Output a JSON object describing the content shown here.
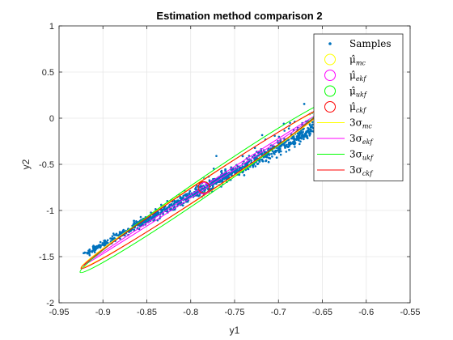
{
  "chart_data": {
    "type": "scatter",
    "title": "Estimation method comparison 2",
    "xlabel": "y1",
    "ylabel": "y2",
    "xlim": [
      -0.95,
      -0.55
    ],
    "ylim": [
      -2,
      1
    ],
    "grid": true,
    "legend_position": "top-right",
    "x_ticks": [
      "-0.95",
      "-0.9",
      "-0.85",
      "-0.8",
      "-0.75",
      "-0.7",
      "-0.65",
      "-0.6",
      "-0.55"
    ],
    "x_tick_values": [
      -0.95,
      -0.9,
      -0.85,
      -0.8,
      -0.75,
      -0.7,
      -0.65,
      -0.6,
      -0.55
    ],
    "y_ticks": [
      "-2",
      "-1.5",
      "-1",
      "-0.5",
      "0",
      "0.5",
      "1"
    ],
    "y_tick_values": [
      -2,
      -1.5,
      -1,
      -0.5,
      0,
      0.5,
      1
    ],
    "samples": {
      "name": "Samples",
      "color": "#0072BD",
      "spine_start": [
        -0.92,
        -1.47
      ],
      "spine_end": [
        -0.63,
        0.05
      ],
      "count": 1500
    },
    "means": [
      {
        "name": "mc",
        "x": -0.785,
        "y": -0.75,
        "color": "#FFFF00"
      },
      {
        "name": "ekf",
        "x": -0.785,
        "y": -0.76,
        "color": "#FF00FF"
      },
      {
        "name": "ukf",
        "x": -0.785,
        "y": -0.75,
        "color": "#00FF00"
      },
      {
        "name": "ckf",
        "x": -0.785,
        "y": -0.75,
        "color": "#FF0000"
      }
    ],
    "ellipses": [
      {
        "name": "mc",
        "color": "#FFFF00",
        "end_a": [
          -0.925,
          -1.62
        ],
        "end_b": [
          -0.645,
          0.12
        ],
        "half_width": 0.075
      },
      {
        "name": "ekf",
        "color": "#FF00FF",
        "end_a": [
          -0.923,
          -1.6
        ],
        "end_b": [
          -0.647,
          0.09
        ],
        "half_width": 0.015
      },
      {
        "name": "ukf",
        "color": "#00FF00",
        "end_a": [
          -0.926,
          -1.67
        ],
        "end_b": [
          -0.644,
          0.17
        ],
        "half_width": 0.095
      },
      {
        "name": "ckf",
        "color": "#FF0000",
        "end_a": [
          -0.925,
          -1.63
        ],
        "end_b": [
          -0.645,
          0.13
        ],
        "half_width": 0.07
      }
    ],
    "legend": [
      {
        "symbol": "dot",
        "color": "#0072BD",
        "text": "Samples",
        "sub": ""
      },
      {
        "symbol": "circle",
        "color": "#FFFF00",
        "text": "μ̂",
        "sub": "mc"
      },
      {
        "symbol": "circle",
        "color": "#FF00FF",
        "text": "μ̂",
        "sub": "ekf"
      },
      {
        "symbol": "circle",
        "color": "#00FF00",
        "text": "μ̂",
        "sub": "ukf"
      },
      {
        "symbol": "circle",
        "color": "#FF0000",
        "text": "μ̂",
        "sub": "ckf"
      },
      {
        "symbol": "line",
        "color": "#FFFF00",
        "text": "3σ",
        "sub": "mc"
      },
      {
        "symbol": "line",
        "color": "#FF00FF",
        "text": "3σ",
        "sub": "ekf"
      },
      {
        "symbol": "line",
        "color": "#00FF00",
        "text": "3σ",
        "sub": "ukf"
      },
      {
        "symbol": "line",
        "color": "#FF0000",
        "text": "3σ",
        "sub": "ckf"
      }
    ]
  }
}
